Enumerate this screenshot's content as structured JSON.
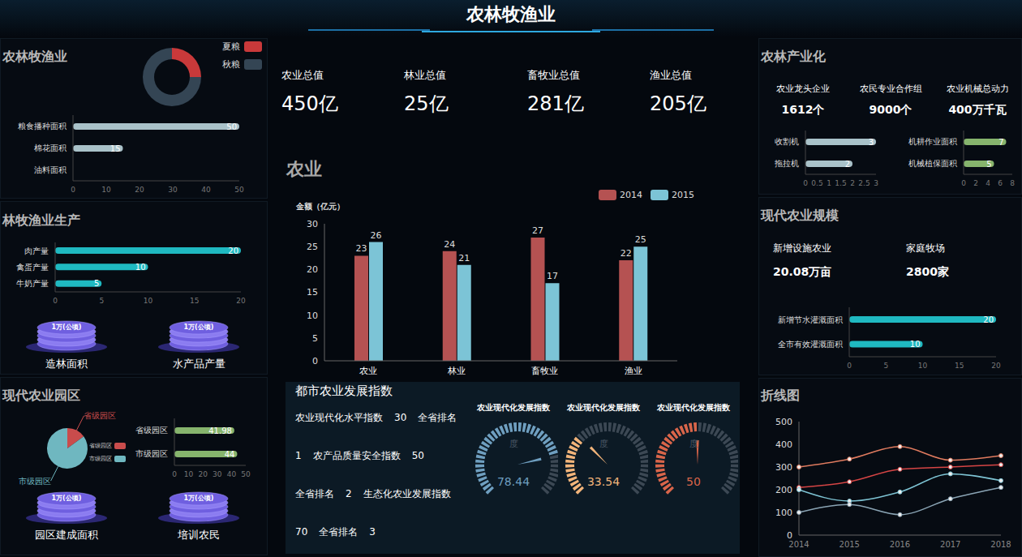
{
  "title": "农林牧渔业",
  "kpis": [
    {
      "label": "农业总值",
      "value": "450亿"
    },
    {
      "label": "林业总值",
      "value": "25亿"
    },
    {
      "label": "畜牧业总值",
      "value": "281亿"
    },
    {
      "label": "渔业总值",
      "value": "205亿"
    }
  ],
  "chart_data": [
    {
      "type": "pie",
      "title": "农林牧渔业",
      "categories": [
        "夏粮",
        "秋粮"
      ],
      "values": [
        25,
        75
      ],
      "colors": [
        "#c9393a",
        "#344554"
      ],
      "legend": "upper right"
    },
    {
      "type": "bar",
      "orientation": "horizontal",
      "categories": [
        "粮食播种面积",
        "棉花面积",
        "油料面积"
      ],
      "values": [
        50,
        15,
        0
      ],
      "color": "#a9c2c9",
      "xlim": [
        0,
        50
      ],
      "xticks": [
        0,
        10,
        20,
        30,
        40,
        50
      ],
      "data_labels": true
    },
    {
      "type": "bar",
      "orientation": "horizontal",
      "title": "林牧渔业生产",
      "categories": [
        "肉产量",
        "禽蛋产量",
        "牛奶产量"
      ],
      "values": [
        20,
        10,
        5
      ],
      "color": "#1fb9c1",
      "xlim": [
        0,
        20
      ],
      "xticks": [
        0,
        5,
        10,
        15,
        20
      ],
      "data_labels": true
    },
    {
      "type": "pie",
      "title": "现代农业园区",
      "categories": [
        "省级园区",
        "市级园区"
      ],
      "values": [
        15,
        85
      ],
      "colors": [
        "#c94c4c",
        "#6fb7c0"
      ],
      "legend": "right"
    },
    {
      "type": "bar",
      "orientation": "horizontal",
      "categories": [
        "省级园区",
        "市级园区"
      ],
      "values": [
        41.98,
        44
      ],
      "color": "#86b46d",
      "xlim": [
        0,
        50
      ],
      "xticks": [
        0,
        10,
        20,
        30,
        40,
        50
      ],
      "data_labels": true
    },
    {
      "type": "bar",
      "title": "农业",
      "y_label": "金额（亿元）",
      "categories": [
        "农业",
        "林业",
        "畜牧业",
        "渔业"
      ],
      "series": [
        {
          "name": "2014",
          "color": "#b55252",
          "values": [
            23,
            24,
            27,
            22
          ]
        },
        {
          "name": "2015",
          "color": "#7cc4d6",
          "values": [
            26,
            21,
            17,
            25
          ]
        }
      ],
      "ylim": [
        0,
        30
      ],
      "yticks": [
        0,
        5,
        10,
        15,
        20,
        25,
        30
      ],
      "data_labels": true,
      "legend": "upper right",
      "grid": false
    },
    {
      "type": "gauge",
      "title": "农业现代化发展指数",
      "label": "度",
      "value": 78.44,
      "ylim": [
        0,
        100
      ],
      "color": "#6f9fc0"
    },
    {
      "type": "gauge",
      "title": "农业现代化发展指数",
      "label": "度",
      "value": 33.54,
      "ylim": [
        0,
        100
      ],
      "color": "#f2b47a"
    },
    {
      "type": "gauge",
      "title": "农业现代化发展指数",
      "label": "度",
      "value": 50,
      "ylim": [
        0,
        100
      ],
      "color": "#d9654a"
    },
    {
      "type": "bar",
      "orientation": "horizontal",
      "categories": [
        "收割机",
        "拖拉机"
      ],
      "values": [
        3,
        2
      ],
      "color": "#a9c2c9",
      "xlim": [
        0,
        3
      ],
      "xticks": [
        0,
        0.5,
        1,
        1.5,
        2,
        2.5,
        3
      ],
      "data_labels": true
    },
    {
      "type": "bar",
      "orientation": "horizontal",
      "categories": [
        "机耕作业面积",
        "机械植保面积"
      ],
      "values": [
        7,
        5
      ],
      "color": "#86b46d",
      "xlim": [
        0,
        8
      ],
      "xticks": [
        0,
        2,
        4,
        6,
        8
      ],
      "data_labels": true
    },
    {
      "type": "bar",
      "orientation": "horizontal",
      "categories": [
        "新增节水灌溉面积",
        "全市有效灌溉面积"
      ],
      "values": [
        20,
        10
      ],
      "color": "#1fb9c1",
      "xlim": [
        0,
        20
      ],
      "xticks": [
        0,
        5,
        10,
        15,
        20
      ],
      "data_labels": true
    },
    {
      "type": "line",
      "title": "折线图",
      "categories": [
        "2014",
        "2015",
        "2016",
        "2017",
        "2018"
      ],
      "series": [
        {
          "color": "#e07b5f",
          "values": [
            300,
            335,
            390,
            330,
            350
          ]
        },
        {
          "color": "#d64545",
          "values": [
            210,
            235,
            290,
            300,
            310
          ]
        },
        {
          "color": "#7ec4d4",
          "values": [
            200,
            150,
            190,
            270,
            240
          ]
        },
        {
          "color": "#8aa4b4",
          "values": [
            100,
            135,
            90,
            160,
            210
          ]
        }
      ],
      "ylim": [
        0,
        500
      ],
      "yticks": [
        0,
        100,
        200,
        300,
        400,
        500
      ],
      "marker": "circle",
      "grid": false
    }
  ],
  "icons": [
    {
      "text": "1万(公顷)",
      "label": "造林面积"
    },
    {
      "text": "1万(公顷)",
      "label": "水产品产量"
    },
    {
      "text": "1万(公顷)",
      "label": "园区建成面积"
    },
    {
      "text": "1万(公顷)",
      "label": "培训农民"
    }
  ],
  "industrialization": {
    "title": "农林产业化",
    "stats": [
      {
        "label": "农业龙头企业",
        "value": "1612个"
      },
      {
        "label": "农民专业合作组",
        "value": "9000个"
      },
      {
        "label": "农业机械总动力",
        "value": "400万千瓦"
      }
    ]
  },
  "scale": {
    "title": "现代农业规模",
    "stats": [
      {
        "label": "新增设施农业",
        "value": "20.08万亩"
      },
      {
        "label": "家庭牧场",
        "value": "2800家"
      }
    ]
  },
  "index_panel": {
    "title": "都市农业发展指数",
    "items": [
      {
        "name": "农业现代化水平指数",
        "value": 30,
        "rank_label": "全省排名",
        "rank": 1
      },
      {
        "name": "农产品质量安全指数",
        "value": 50,
        "rank_label": "全省排名",
        "rank": 2
      },
      {
        "name": "生态化农业发展指数",
        "value": 70,
        "rank_label": "全省排名",
        "rank": 3
      }
    ]
  }
}
